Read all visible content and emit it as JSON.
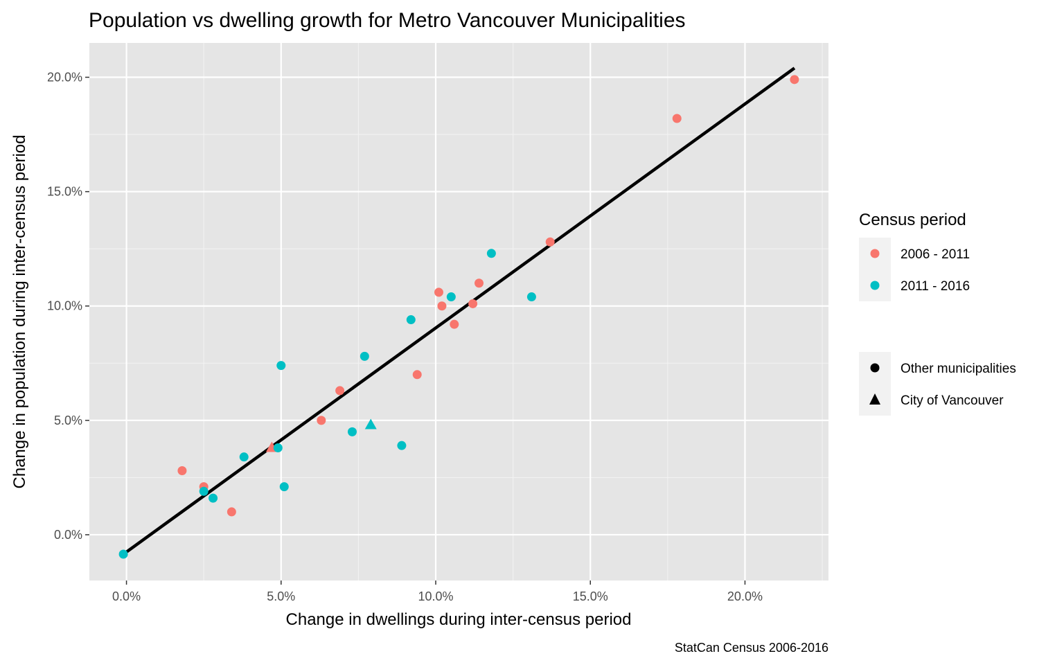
{
  "chart_data": {
    "type": "scatter",
    "title": "Population vs dwelling growth for Metro Vancouver Municipalities",
    "xlabel": "Change in dwellings during inter-census period",
    "ylabel": "Change in population during inter-census period",
    "caption": "StatCan Census 2006-2016",
    "xlim": [
      -0.012,
      0.227
    ],
    "ylim": [
      -0.02,
      0.215
    ],
    "x_ticks": [
      {
        "value": 0.0,
        "label": "0.0%"
      },
      {
        "value": 0.05,
        "label": "5.0%"
      },
      {
        "value": 0.1,
        "label": "10.0%"
      },
      {
        "value": 0.15,
        "label": "15.0%"
      },
      {
        "value": 0.2,
        "label": "20.0%"
      }
    ],
    "y_ticks": [
      {
        "value": 0.0,
        "label": "0.0%"
      },
      {
        "value": 0.05,
        "label": "5.0%"
      },
      {
        "value": 0.1,
        "label": "10.0%"
      },
      {
        "value": 0.15,
        "label": "15.0%"
      },
      {
        "value": 0.2,
        "label": "20.0%"
      }
    ],
    "grid": true,
    "background_color": "#e5e5e5",
    "color_legend": {
      "title": "Census period",
      "entries": [
        {
          "label": "2006 - 2011",
          "color": "#f8766d"
        },
        {
          "label": "2011 - 2016",
          "color": "#00bfc4"
        }
      ]
    },
    "shape_legend": {
      "entries": [
        {
          "label": "Other municipalities",
          "shape": "circle"
        },
        {
          "label": "City of Vancouver",
          "shape": "triangle"
        }
      ]
    },
    "legend_position": "right",
    "fit_line": {
      "x": [
        -0.001,
        0.216
      ],
      "y": [
        -0.0085,
        0.204
      ],
      "color": "#000000"
    },
    "series": [
      {
        "name": "2006 - 2011",
        "color": "#f8766d",
        "points": [
          {
            "x": 0.216,
            "y": 0.199,
            "shape": "circle"
          },
          {
            "x": 0.178,
            "y": 0.182,
            "shape": "circle"
          },
          {
            "x": 0.137,
            "y": 0.128,
            "shape": "circle"
          },
          {
            "x": 0.114,
            "y": 0.11,
            "shape": "circle"
          },
          {
            "x": 0.112,
            "y": 0.101,
            "shape": "circle"
          },
          {
            "x": 0.101,
            "y": 0.106,
            "shape": "circle"
          },
          {
            "x": 0.102,
            "y": 0.1,
            "shape": "circle"
          },
          {
            "x": 0.106,
            "y": 0.092,
            "shape": "circle"
          },
          {
            "x": 0.094,
            "y": 0.07,
            "shape": "circle"
          },
          {
            "x": 0.069,
            "y": 0.063,
            "shape": "circle"
          },
          {
            "x": 0.063,
            "y": 0.05,
            "shape": "circle"
          },
          {
            "x": 0.047,
            "y": 0.038,
            "shape": "triangle"
          },
          {
            "x": 0.034,
            "y": 0.01,
            "shape": "circle"
          },
          {
            "x": 0.025,
            "y": 0.021,
            "shape": "circle"
          },
          {
            "x": 0.018,
            "y": 0.028,
            "shape": "circle"
          }
        ]
      },
      {
        "name": "2011 - 2016",
        "color": "#00bfc4",
        "points": [
          {
            "x": 0.118,
            "y": 0.123,
            "shape": "circle"
          },
          {
            "x": 0.131,
            "y": 0.104,
            "shape": "circle"
          },
          {
            "x": 0.105,
            "y": 0.104,
            "shape": "circle"
          },
          {
            "x": 0.092,
            "y": 0.094,
            "shape": "circle"
          },
          {
            "x": 0.077,
            "y": 0.078,
            "shape": "circle"
          },
          {
            "x": 0.05,
            "y": 0.074,
            "shape": "circle"
          },
          {
            "x": 0.079,
            "y": 0.048,
            "shape": "triangle"
          },
          {
            "x": 0.073,
            "y": 0.045,
            "shape": "circle"
          },
          {
            "x": 0.089,
            "y": 0.039,
            "shape": "circle"
          },
          {
            "x": 0.049,
            "y": 0.038,
            "shape": "circle"
          },
          {
            "x": 0.038,
            "y": 0.034,
            "shape": "circle"
          },
          {
            "x": 0.051,
            "y": 0.021,
            "shape": "circle"
          },
          {
            "x": 0.025,
            "y": 0.019,
            "shape": "circle"
          },
          {
            "x": 0.028,
            "y": 0.016,
            "shape": "circle"
          },
          {
            "x": -0.001,
            "y": -0.0085,
            "shape": "circle"
          }
        ]
      }
    ]
  }
}
